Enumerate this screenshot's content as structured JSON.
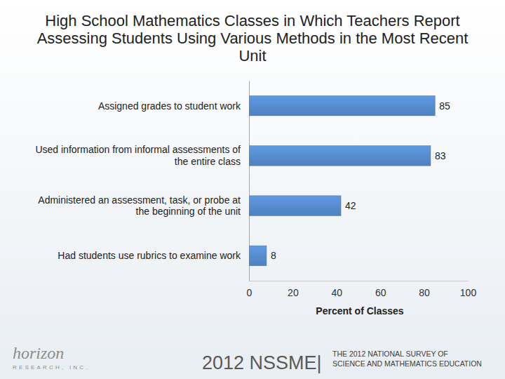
{
  "chart_data": {
    "type": "bar",
    "title": "High School Mathematics Classes in Which Teachers Report Assessing Students Using Various Methods in the Most Recent Unit",
    "categories": [
      "Assigned grades to student work",
      "Used information from informal assessments of the entire class",
      "Administered an assessment, task, or probe at the beginning of the unit",
      "Had students use rubrics to examine work"
    ],
    "values": [
      85,
      83,
      42,
      8
    ],
    "color": "#4f81bd",
    "orientation": "horizontal",
    "data_labels": true,
    "grid": false,
    "xlim": [
      0,
      100
    ],
    "xticks": [
      0,
      20,
      40,
      60,
      80,
      100
    ],
    "xlabel": "Percent of Classes",
    "annotations": [
      "2012 NSSME|",
      "THE 2012 NATIONAL SURVEY OF",
      "SCIENCE AND MATHEMATICS EDUCATION",
      "horizon",
      "RESEARCH, INC."
    ]
  }
}
